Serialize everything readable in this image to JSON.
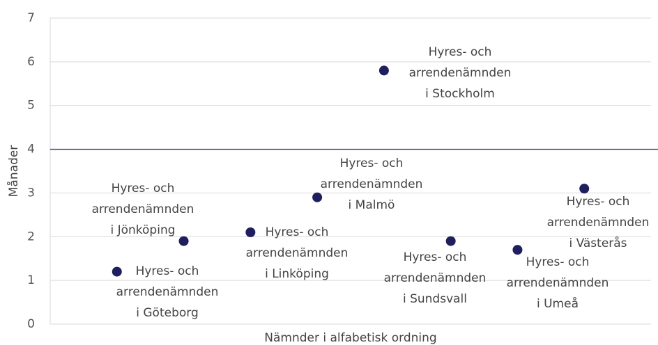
{
  "chart_data": {
    "type": "scatter",
    "x_label": "Nämnder i alfabetisk ordning",
    "y_label": "Månader",
    "x": [
      1,
      2,
      3,
      4,
      5,
      6,
      7,
      8
    ],
    "values": [
      1.2,
      1.9,
      2.1,
      2.9,
      5.8,
      1.9,
      1.7,
      3.1
    ],
    "labels": [
      [
        "Hyres- och",
        "arrendenämnden",
        "i Göteborg"
      ],
      [
        "Hyres- och",
        "arrendenämnden",
        "i Jönköping"
      ],
      [
        "Hyres- och",
        "arrendenämnden",
        "i Linköping"
      ],
      [
        "Hyres- och",
        "arrendenämnden",
        "i Malmö"
      ],
      [
        "Hyres- och",
        "arrendenämnden",
        "i Stockholm"
      ],
      [
        "Hyres- och",
        "arrendenämnden",
        "i Sundsvall"
      ],
      [
        "Hyres- och",
        "arrendenämnden",
        "i Umeå"
      ],
      [
        "Hyres- och",
        "arrendenämnden",
        "i Västerås"
      ]
    ],
    "color": "#1f1f5e",
    "reference_line": 4,
    "reference_color": "#3b3b78",
    "xlim": [
      0,
      9
    ],
    "ylim": [
      0,
      7
    ],
    "yticks": [
      0,
      1,
      2,
      3,
      4,
      5,
      6,
      7
    ],
    "grid": true
  }
}
